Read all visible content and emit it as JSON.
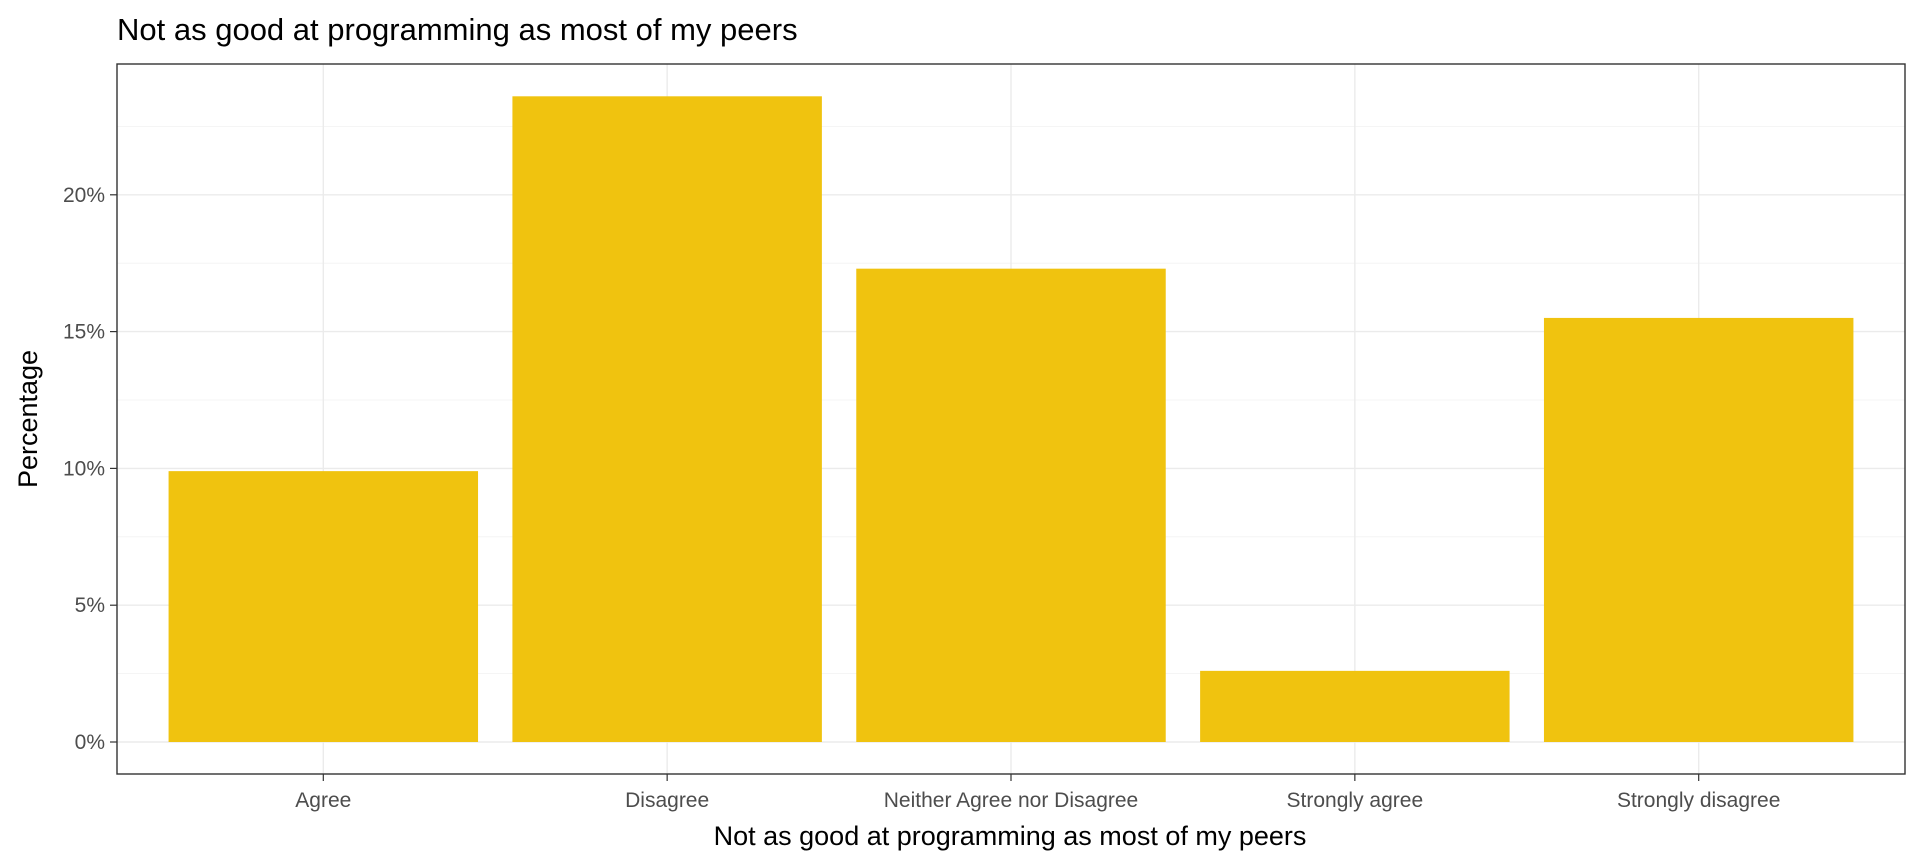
{
  "chart_data": {
    "type": "bar",
    "title": "Not as good at programming as most of my peers",
    "xlabel": "Not as good at programming as most of my peers",
    "ylabel": "Percentage",
    "categories": [
      "Agree",
      "Disagree",
      "Neither Agree nor Disagree",
      "Strongly agree",
      "Strongly disagree"
    ],
    "values": [
      9.9,
      23.6,
      17.3,
      2.6,
      15.5
    ],
    "y_ticks": [
      0,
      5,
      10,
      15,
      20
    ],
    "y_tick_labels": [
      "0%",
      "5%",
      "10%",
      "15%",
      "20%"
    ],
    "ylim": [
      0,
      24.8
    ],
    "grid": true,
    "legend": "none",
    "bar_color": "#f0c30f"
  }
}
